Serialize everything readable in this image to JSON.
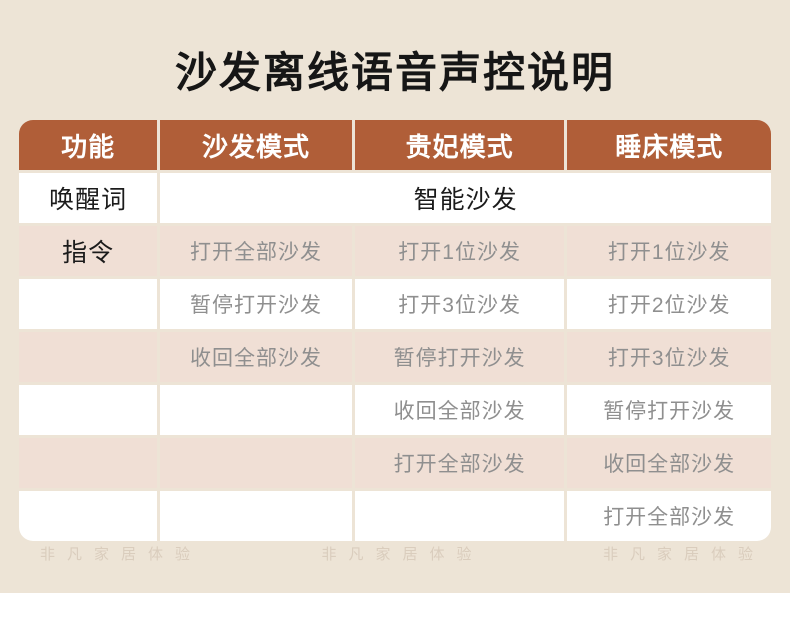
{
  "page": {
    "title": "沙发离线语音声控说明",
    "watermark_text": "非凡家居体验"
  },
  "colors": {
    "panel_bg": "#EDE4D6",
    "header_bg": "#B05E38",
    "row_pink": "#F0DFD5",
    "row_white": "#FFFFFF",
    "command_text": "#8F8F8F",
    "label_text": "#1B1B1B"
  },
  "table": {
    "headers": [
      "功能",
      "沙发模式",
      "贵妃模式",
      "睡床模式"
    ],
    "wake": {
      "label": "唤醒词",
      "value": "智能沙发"
    },
    "command_rows": [
      {
        "label": "指令",
        "cells": [
          "打开全部沙发",
          "打开1位沙发",
          "打开1位沙发"
        ]
      },
      {
        "label": "",
        "cells": [
          "暂停打开沙发",
          "打开3位沙发",
          "打开2位沙发"
        ]
      },
      {
        "label": "",
        "cells": [
          "收回全部沙发",
          "暂停打开沙发",
          "打开3位沙发"
        ]
      },
      {
        "label": "",
        "cells": [
          "",
          "收回全部沙发",
          "暂停打开沙发"
        ]
      },
      {
        "label": "",
        "cells": [
          "",
          "打开全部沙发",
          "收回全部沙发"
        ]
      },
      {
        "label": "",
        "cells": [
          "",
          "",
          "打开全部沙发"
        ]
      }
    ]
  }
}
